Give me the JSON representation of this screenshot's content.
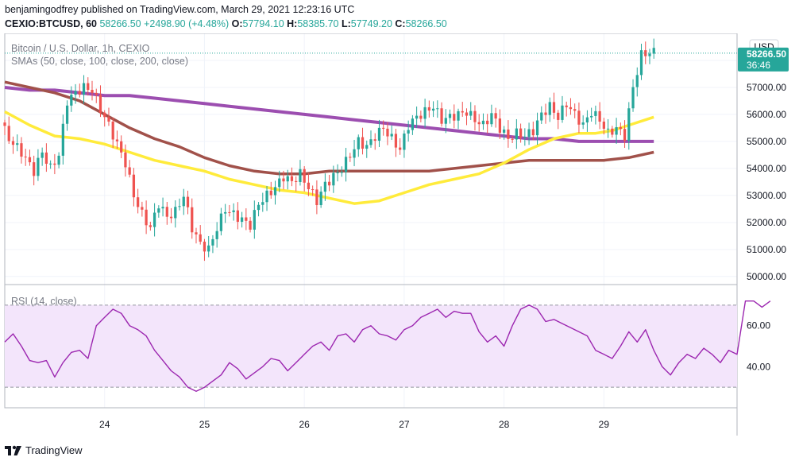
{
  "header": {
    "publisher": "benjamingodfrey",
    "published_text": "published on TradingView.com, March 29, 2021 12:23:16 UTC",
    "symbol": "CEXIO:BTCUSD, 60",
    "last": "58266.50",
    "change": "+2498.90 (+4.48%)",
    "o_label": "O:",
    "o": "57794.10",
    "h_label": "H:",
    "h": "58385.70",
    "l_label": "L:",
    "l": "57749.20",
    "c_label": "C:",
    "c": "58266.50"
  },
  "legend": {
    "title": "Bitcoin / U.S. Dollar, 1h, CEXIO",
    "smas": "SMAs (50, close, 100, close, 200, close)",
    "rsi": "RSI (14, close)"
  },
  "price_axis": {
    "currency": "USD",
    "last_price": "58266.50",
    "countdown": "36:46",
    "ticks": [
      "58000.00",
      "57000.00",
      "56000.00",
      "55000.00",
      "54000.00",
      "53000.00",
      "52000.00",
      "51000.00",
      "50000.00"
    ]
  },
  "rsi_axis": {
    "ticks": [
      "60.00",
      "40.00"
    ]
  },
  "time_axis": {
    "ticks": [
      "24",
      "25",
      "26",
      "27",
      "28",
      "29"
    ]
  },
  "footer": {
    "brand": "TradingView"
  },
  "colors": {
    "up": "#26a69a",
    "down": "#ef5350",
    "sma50": "#ffeb3b",
    "sma100": "#a1514a",
    "sma200": "#9c4eb0",
    "rsi_line": "#9c27b0",
    "rsi_band": "#f3e5fb"
  },
  "chart_data": {
    "type": "candlestick",
    "title": "Bitcoin / U.S. Dollar, 1h, CEXIO",
    "ylim": [
      49700,
      59000
    ],
    "rsi_ylim": [
      20,
      80
    ],
    "x_range_hours": [
      -24,
      152
    ],
    "day_ticks": [
      {
        "label": "24",
        "hour": 0
      },
      {
        "label": "25",
        "hour": 24
      },
      {
        "label": "26",
        "hour": 48
      },
      {
        "label": "27",
        "hour": 72
      },
      {
        "label": "28",
        "hour": 96
      },
      {
        "label": "29",
        "hour": 120
      }
    ],
    "rsi_band": [
      30,
      70
    ],
    "rsi_levels": [
      60,
      40
    ],
    "price_anchors": [
      [
        -24,
        55700
      ],
      [
        -22,
        55100
      ],
      [
        -19,
        54600
      ],
      [
        -16,
        53900
      ],
      [
        -14,
        54600
      ],
      [
        -12,
        54000
      ],
      [
        -10,
        54500
      ],
      [
        -8,
        56500
      ],
      [
        -6,
        56800
      ],
      [
        -4,
        57000
      ],
      [
        -2,
        56900
      ],
      [
        0,
        56200
      ],
      [
        2,
        55600
      ],
      [
        4,
        54900
      ],
      [
        6,
        54200
      ],
      [
        8,
        53000
      ],
      [
        10,
        52300
      ],
      [
        12,
        51800
      ],
      [
        14,
        52700
      ],
      [
        16,
        52200
      ],
      [
        18,
        52400
      ],
      [
        20,
        53000
      ],
      [
        22,
        51800
      ],
      [
        24,
        51200
      ],
      [
        26,
        51000
      ],
      [
        28,
        51800
      ],
      [
        30,
        52500
      ],
      [
        32,
        52300
      ],
      [
        34,
        52100
      ],
      [
        36,
        51900
      ],
      [
        38,
        52700
      ],
      [
        40,
        53000
      ],
      [
        42,
        53300
      ],
      [
        44,
        53700
      ],
      [
        46,
        53500
      ],
      [
        48,
        53800
      ],
      [
        50,
        53300
      ],
      [
        52,
        52800
      ],
      [
        54,
        53400
      ],
      [
        56,
        53700
      ],
      [
        58,
        54000
      ],
      [
        60,
        54500
      ],
      [
        62,
        55000
      ],
      [
        64,
        54800
      ],
      [
        66,
        55200
      ],
      [
        68,
        55500
      ],
      [
        70,
        55100
      ],
      [
        72,
        54700
      ],
      [
        74,
        55600
      ],
      [
        76,
        55900
      ],
      [
        78,
        56100
      ],
      [
        80,
        56300
      ],
      [
        82,
        55800
      ],
      [
        84,
        55900
      ],
      [
        86,
        56000
      ],
      [
        88,
        56100
      ],
      [
        90,
        55800
      ],
      [
        92,
        55600
      ],
      [
        94,
        56000
      ],
      [
        96,
        55500
      ],
      [
        98,
        55100
      ],
      [
        100,
        55300
      ],
      [
        102,
        55200
      ],
      [
        104,
        55400
      ],
      [
        106,
        56000
      ],
      [
        108,
        56300
      ],
      [
        110,
        55900
      ],
      [
        112,
        56400
      ],
      [
        114,
        56000
      ],
      [
        116,
        55600
      ],
      [
        118,
        56100
      ],
      [
        120,
        55800
      ],
      [
        122,
        55300
      ],
      [
        124,
        55500
      ],
      [
        126,
        55200
      ],
      [
        128,
        57000
      ],
      [
        130,
        58200
      ],
      [
        132,
        58300
      ]
    ],
    "sma50": [
      [
        -24,
        56100
      ],
      [
        -18,
        55600
      ],
      [
        -12,
        55200
      ],
      [
        -6,
        55100
      ],
      [
        0,
        54900
      ],
      [
        6,
        54600
      ],
      [
        12,
        54300
      ],
      [
        18,
        54100
      ],
      [
        24,
        53900
      ],
      [
        30,
        53600
      ],
      [
        36,
        53400
      ],
      [
        42,
        53200
      ],
      [
        48,
        53100
      ],
      [
        54,
        52900
      ],
      [
        60,
        52700
      ],
      [
        66,
        52800
      ],
      [
        72,
        53100
      ],
      [
        78,
        53400
      ],
      [
        84,
        53600
      ],
      [
        90,
        53800
      ],
      [
        96,
        54200
      ],
      [
        102,
        54700
      ],
      [
        108,
        55100
      ],
      [
        114,
        55300
      ],
      [
        118,
        55300
      ],
      [
        122,
        55400
      ],
      [
        126,
        55600
      ],
      [
        132,
        55900
      ]
    ],
    "sma100": [
      [
        -24,
        57200
      ],
      [
        -18,
        57000
      ],
      [
        -12,
        56800
      ],
      [
        -6,
        56500
      ],
      [
        0,
        56000
      ],
      [
        6,
        55500
      ],
      [
        12,
        55100
      ],
      [
        18,
        54800
      ],
      [
        24,
        54400
      ],
      [
        30,
        54100
      ],
      [
        36,
        53900
      ],
      [
        42,
        53800
      ],
      [
        48,
        53800
      ],
      [
        54,
        53900
      ],
      [
        60,
        53900
      ],
      [
        66,
        53900
      ],
      [
        72,
        53900
      ],
      [
        78,
        53900
      ],
      [
        84,
        54000
      ],
      [
        90,
        54100
      ],
      [
        96,
        54200
      ],
      [
        102,
        54300
      ],
      [
        108,
        54300
      ],
      [
        114,
        54300
      ],
      [
        120,
        54300
      ],
      [
        126,
        54400
      ],
      [
        132,
        54600
      ]
    ],
    "sma200": [
      [
        -24,
        57000
      ],
      [
        -18,
        56900
      ],
      [
        -12,
        56900
      ],
      [
        -6,
        56800
      ],
      [
        0,
        56700
      ],
      [
        6,
        56700
      ],
      [
        12,
        56600
      ],
      [
        18,
        56500
      ],
      [
        24,
        56400
      ],
      [
        30,
        56300
      ],
      [
        36,
        56200
      ],
      [
        42,
        56100
      ],
      [
        48,
        56000
      ],
      [
        54,
        55900
      ],
      [
        60,
        55800
      ],
      [
        66,
        55700
      ],
      [
        72,
        55600
      ],
      [
        78,
        55500
      ],
      [
        84,
        55400
      ],
      [
        90,
        55300
      ],
      [
        96,
        55200
      ],
      [
        102,
        55100
      ],
      [
        108,
        55100
      ],
      [
        114,
        55000
      ],
      [
        120,
        55000
      ],
      [
        126,
        55000
      ],
      [
        132,
        55000
      ]
    ],
    "rsi": [
      [
        -24,
        52
      ],
      [
        -22,
        56
      ],
      [
        -20,
        50
      ],
      [
        -18,
        43
      ],
      [
        -16,
        42
      ],
      [
        -14,
        43
      ],
      [
        -12,
        35
      ],
      [
        -10,
        42
      ],
      [
        -8,
        47
      ],
      [
        -6,
        48
      ],
      [
        -4,
        44
      ],
      [
        -2,
        60
      ],
      [
        0,
        64
      ],
      [
        2,
        68
      ],
      [
        4,
        66
      ],
      [
        6,
        60
      ],
      [
        8,
        58
      ],
      [
        10,
        55
      ],
      [
        12,
        48
      ],
      [
        14,
        43
      ],
      [
        16,
        38
      ],
      [
        18,
        35
      ],
      [
        20,
        30
      ],
      [
        22,
        28
      ],
      [
        24,
        30
      ],
      [
        26,
        33
      ],
      [
        28,
        36
      ],
      [
        30,
        42
      ],
      [
        32,
        39
      ],
      [
        34,
        34
      ],
      [
        36,
        37
      ],
      [
        38,
        40
      ],
      [
        40,
        44
      ],
      [
        42,
        43
      ],
      [
        44,
        38
      ],
      [
        46,
        42
      ],
      [
        48,
        46
      ],
      [
        50,
        50
      ],
      [
        52,
        52
      ],
      [
        54,
        48
      ],
      [
        56,
        55
      ],
      [
        58,
        56
      ],
      [
        60,
        52
      ],
      [
        62,
        58
      ],
      [
        64,
        60
      ],
      [
        66,
        56
      ],
      [
        68,
        55
      ],
      [
        70,
        53
      ],
      [
        72,
        58
      ],
      [
        74,
        60
      ],
      [
        76,
        64
      ],
      [
        78,
        66
      ],
      [
        80,
        68
      ],
      [
        82,
        64
      ],
      [
        84,
        67
      ],
      [
        86,
        66
      ],
      [
        88,
        66
      ],
      [
        90,
        57
      ],
      [
        92,
        52
      ],
      [
        94,
        55
      ],
      [
        96,
        50
      ],
      [
        98,
        60
      ],
      [
        100,
        68
      ],
      [
        102,
        70
      ],
      [
        104,
        68
      ],
      [
        106,
        62
      ],
      [
        108,
        63
      ],
      [
        110,
        61
      ],
      [
        112,
        59
      ],
      [
        114,
        57
      ],
      [
        116,
        55
      ],
      [
        118,
        48
      ],
      [
        120,
        46
      ],
      [
        122,
        44
      ],
      [
        124,
        50
      ],
      [
        126,
        57
      ],
      [
        128,
        52
      ],
      [
        130,
        58
      ],
      [
        132,
        48
      ],
      [
        134,
        40
      ],
      [
        136,
        36
      ],
      [
        138,
        42
      ],
      [
        140,
        46
      ],
      [
        142,
        44
      ],
      [
        144,
        49
      ],
      [
        146,
        46
      ],
      [
        148,
        42
      ],
      [
        150,
        48
      ],
      [
        152,
        46
      ],
      [
        154,
        72
      ],
      [
        156,
        72
      ],
      [
        158,
        69
      ],
      [
        160,
        72
      ]
    ]
  }
}
